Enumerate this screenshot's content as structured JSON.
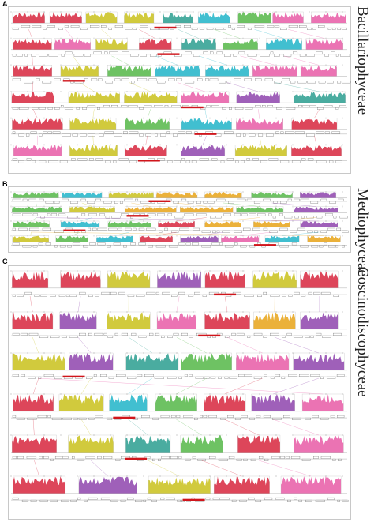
{
  "panels": [
    {
      "letter": "A",
      "class_name": "Bacillariophyceae",
      "genomes": [
        {
          "name": "Cylindrotheca closterium",
          "blocks": [
            "#d7263d",
            "#d7263d",
            "#c9c11b",
            "#c9c11b",
            "#2a9d8f",
            "#20b4c8",
            "#55b748",
            "#e85aa6",
            "#e85aa6"
          ]
        },
        {
          "name": "Cylindrotheca closterium",
          "blocks": [
            "#d7263d",
            "#e85aa6",
            "#c9c11b",
            "#d7263d",
            "#2a9d8f",
            "#55b748",
            "#20b4c8",
            "#e85aa6"
          ]
        },
        {
          "name": "Nitzschia alba",
          "blocks": [
            "#d7263d",
            "#c9c11b",
            "#55b748",
            "#20b4c8",
            "#20b4c8",
            "#e85aa6",
            "#e85aa6"
          ]
        },
        {
          "name": "Nitzschia putrida",
          "blocks": [
            "#d7263d",
            "#c9c11b",
            "#c9c11b",
            "#e85aa6",
            "#8e44ad",
            "#2a9d8f"
          ]
        },
        {
          "name": "Nitzschia sp.",
          "blocks": [
            "#d7263d",
            "#c9c11b",
            "#55b748",
            "#20b4c8",
            "#e85aa6",
            "#d7263d"
          ]
        },
        {
          "name": "Haslea nusantara",
          "blocks": [
            "#e85aa6",
            "#c9c11b",
            "#d7263d",
            "#8e44ad",
            "#c9c11b",
            "#d7263d"
          ]
        }
      ],
      "reference_label": "Phaeodactylum tricornutum"
    },
    {
      "letter": "B",
      "class_name": "Mediophyceae",
      "genomes": [
        {
          "name": "Skeletonema marinoi",
          "blocks": [
            "#55b748",
            "#20b4c8",
            "#c9c11b",
            "#e8a317",
            "#e8a317",
            "#55b748",
            "#8e44ad"
          ]
        },
        {
          "name": "Skeletonema marinoi",
          "blocks": [
            "#55b748",
            "#c9c11b",
            "#e8a317",
            "#e8a317",
            "#55b748",
            "#8e44ad"
          ]
        },
        {
          "name": "Conticribra weissflogii",
          "blocks": [
            "#55b748",
            "#20b4c8",
            "#55b748",
            "#d7263d",
            "#e8a317",
            "#e8a317",
            "#8e44ad"
          ]
        },
        {
          "name": "Cyclotella nana",
          "blocks": [
            "#c9c11b",
            "#55b748",
            "#20b4c8",
            "#d7263d",
            "#8e44ad",
            "#e85aa6",
            "#20b4c8",
            "#e8a317"
          ]
        }
      ],
      "reference_label": "Chaetoceros gracilis"
    },
    {
      "letter": "C",
      "class_name": "Coscinodiscophyceae",
      "genomes": [
        {
          "name": "Coscinodiscus wailesii",
          "blocks": [
            "#d7263d",
            "#d7263d",
            "#c9c11b",
            "#8e44ad",
            "#d7263d",
            "#c9c11b",
            "#d7263d"
          ]
        },
        {
          "name": "Aulacoseira subarctica",
          "blocks": [
            "#d7263d",
            "#8e44ad",
            "#c9c11b",
            "#e85aa6",
            "#d7263d",
            "#e8a317",
            "#8e44ad"
          ]
        },
        {
          "name": "Coscinodiscus granii",
          "blocks": [
            "#c9c11b",
            "#8e44ad",
            "#2a9d8f",
            "#55b748",
            "#e85aa6",
            "#8e44ad"
          ]
        },
        {
          "name": "Rhizosolenia setigera",
          "blocks": [
            "#d7263d",
            "#c9c11b",
            "#20b4c8",
            "#55b748",
            "#d7263d",
            "#8e44ad",
            "#e85aa6"
          ]
        },
        {
          "name": "Guinardia striata",
          "blocks": [
            "#d7263d",
            "#c9c11b",
            "#2a9d8f",
            "#55b748",
            "#d7263d",
            "#e85aa6"
          ]
        },
        {
          "name": "Proboscia sp.",
          "blocks": [
            "#d7263d",
            "#8e44ad",
            "#c9c11b",
            "#d7263d",
            "#e85aa6"
          ]
        }
      ],
      "reference_label": "Leptocylindrus danicus"
    }
  ]
}
